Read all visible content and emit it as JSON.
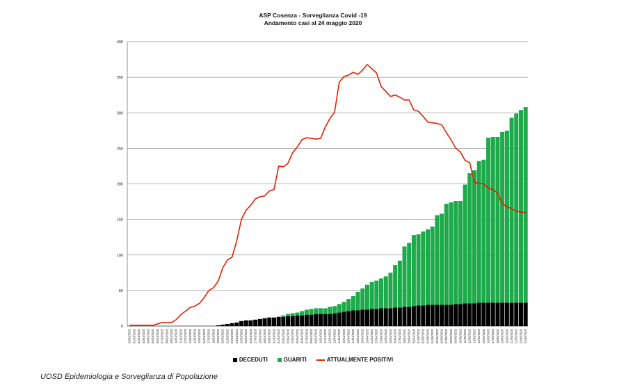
{
  "chart_data": {
    "type": "bar",
    "title": "ASP Cosenza - Sorveglianza Covid -19",
    "subtitle": "Andamento casi al 24 maggio 2020",
    "ylim": [
      0,
      400
    ],
    "yticks": [
      0,
      50,
      100,
      150,
      200,
      250,
      300,
      350,
      400
    ],
    "grid": true,
    "legend_position": "bottom",
    "colors": {
      "deceduti": "#000000",
      "guariti": "#1daa4a",
      "attualmente_positivi": "#e32000"
    },
    "categories": [
      "29/02/2020",
      "01/03/2020",
      "02/03/2020",
      "03/03/2020",
      "04/03/2020",
      "05/03/2020",
      "06/03/2020",
      "07/03/2020",
      "08/03/2020",
      "09/03/2020",
      "10/03/2020",
      "11/03/2020",
      "12/03/2020",
      "13/03/2020",
      "14/03/2020",
      "15/03/2020",
      "16/03/2020",
      "17/03/2020",
      "18/03/2020",
      "19/03/2020",
      "20/03/2020",
      "21/03/2020",
      "22/03/2020",
      "23/03/2020",
      "24/03/2020",
      "25/03/2020",
      "26/03/2020",
      "27/03/2020",
      "28/03/2020",
      "29/03/2020",
      "30/03/2020",
      "31/03/2020",
      "01/04/2020",
      "02/04/2020",
      "03/04/2020",
      "04/04/2020",
      "05/04/2020",
      "06/04/2020",
      "07/04/2020",
      "08/04/2020",
      "09/04/2020",
      "10/04/2020",
      "11/04/2020",
      "12/04/2020",
      "13/04/2020",
      "14/04/2020",
      "15/04/2020",
      "16/04/2020",
      "17/04/2020",
      "18/04/2020",
      "19/04/2020",
      "20/04/2020",
      "21/04/2020",
      "22/04/2020",
      "23/04/2020",
      "24/04/2020",
      "25/04/2020",
      "26/04/2020",
      "27/04/2020",
      "28/04/2020",
      "29/04/2020",
      "30/04/2020",
      "01/05/2020",
      "02/05/2020",
      "03/05/2020",
      "04/05/2020",
      "05/05/2020",
      "06/05/2020",
      "07/05/2020",
      "08/05/2020",
      "09/05/2020",
      "10/05/2020",
      "11/05/2020",
      "12/05/2020",
      "13/05/2020",
      "14/05/2020",
      "15/05/2020",
      "16/05/2020",
      "17/05/2020",
      "18/05/2020",
      "19/05/2020",
      "20/05/2020",
      "21/05/2020",
      "22/05/2020",
      "23/05/2020",
      "24/05/2020"
    ],
    "series": [
      {
        "name": "DECEDUTI",
        "type": "bar",
        "values": [
          0,
          0,
          0,
          0,
          0,
          0,
          0,
          0,
          0,
          0,
          0,
          0,
          0,
          0,
          0,
          0,
          0,
          0,
          0,
          1,
          2,
          3,
          4,
          5,
          7,
          8,
          8,
          9,
          10,
          11,
          12,
          12,
          13,
          13,
          14,
          14,
          15,
          15,
          16,
          16,
          17,
          17,
          17,
          17,
          18,
          19,
          20,
          21,
          22,
          22,
          23,
          23,
          24,
          24,
          25,
          25,
          25,
          26,
          26,
          27,
          27,
          28,
          29,
          29,
          30,
          30,
          30,
          30,
          30,
          30,
          31,
          31,
          32,
          32,
          32,
          33,
          33,
          33,
          33,
          33,
          33,
          33,
          33,
          33,
          33,
          33
        ]
      },
      {
        "name": "GUARITI",
        "type": "bar",
        "values": [
          0,
          0,
          0,
          0,
          0,
          0,
          0,
          0,
          0,
          0,
          0,
          0,
          0,
          0,
          0,
          0,
          0,
          0,
          0,
          0,
          0,
          0,
          0,
          0,
          0,
          0,
          0,
          0,
          0,
          0,
          0,
          0,
          0,
          2,
          3,
          4,
          4,
          6,
          7,
          8,
          8,
          8,
          8,
          10,
          10,
          12,
          14,
          17,
          20,
          26,
          30,
          35,
          38,
          40,
          42,
          45,
          50,
          60,
          66,
          85,
          90,
          100,
          100,
          104,
          106,
          110,
          126,
          128,
          142,
          144,
          145,
          145,
          167,
          183,
          187,
          199,
          201,
          232,
          233,
          233,
          240,
          242,
          260,
          266,
          271,
          275
        ]
      },
      {
        "name": "ATTUALMENTE POSITIVI",
        "type": "line",
        "values": [
          1,
          1,
          1,
          1,
          1,
          1,
          3,
          5,
          5,
          5,
          9,
          16,
          21,
          26,
          28,
          32,
          40,
          50,
          54,
          63,
          82,
          93,
          97,
          120,
          150,
          163,
          170,
          179,
          182,
          183,
          190,
          192,
          225,
          224,
          229,
          244,
          252,
          262,
          265,
          264,
          263,
          264,
          280,
          292,
          301,
          343,
          351,
          353,
          357,
          354,
          360,
          368,
          362,
          356,
          337,
          330,
          323,
          325,
          322,
          318,
          318,
          304,
          302,
          295,
          287,
          286,
          285,
          283,
          272,
          262,
          250,
          245,
          233,
          230,
          202,
          201,
          200,
          194,
          192,
          187,
          172,
          168,
          165,
          162,
          160,
          160
        ]
      }
    ]
  },
  "footer": {
    "text": "UOSD Epidemiologia e Sorveglianza di Popolazione"
  }
}
